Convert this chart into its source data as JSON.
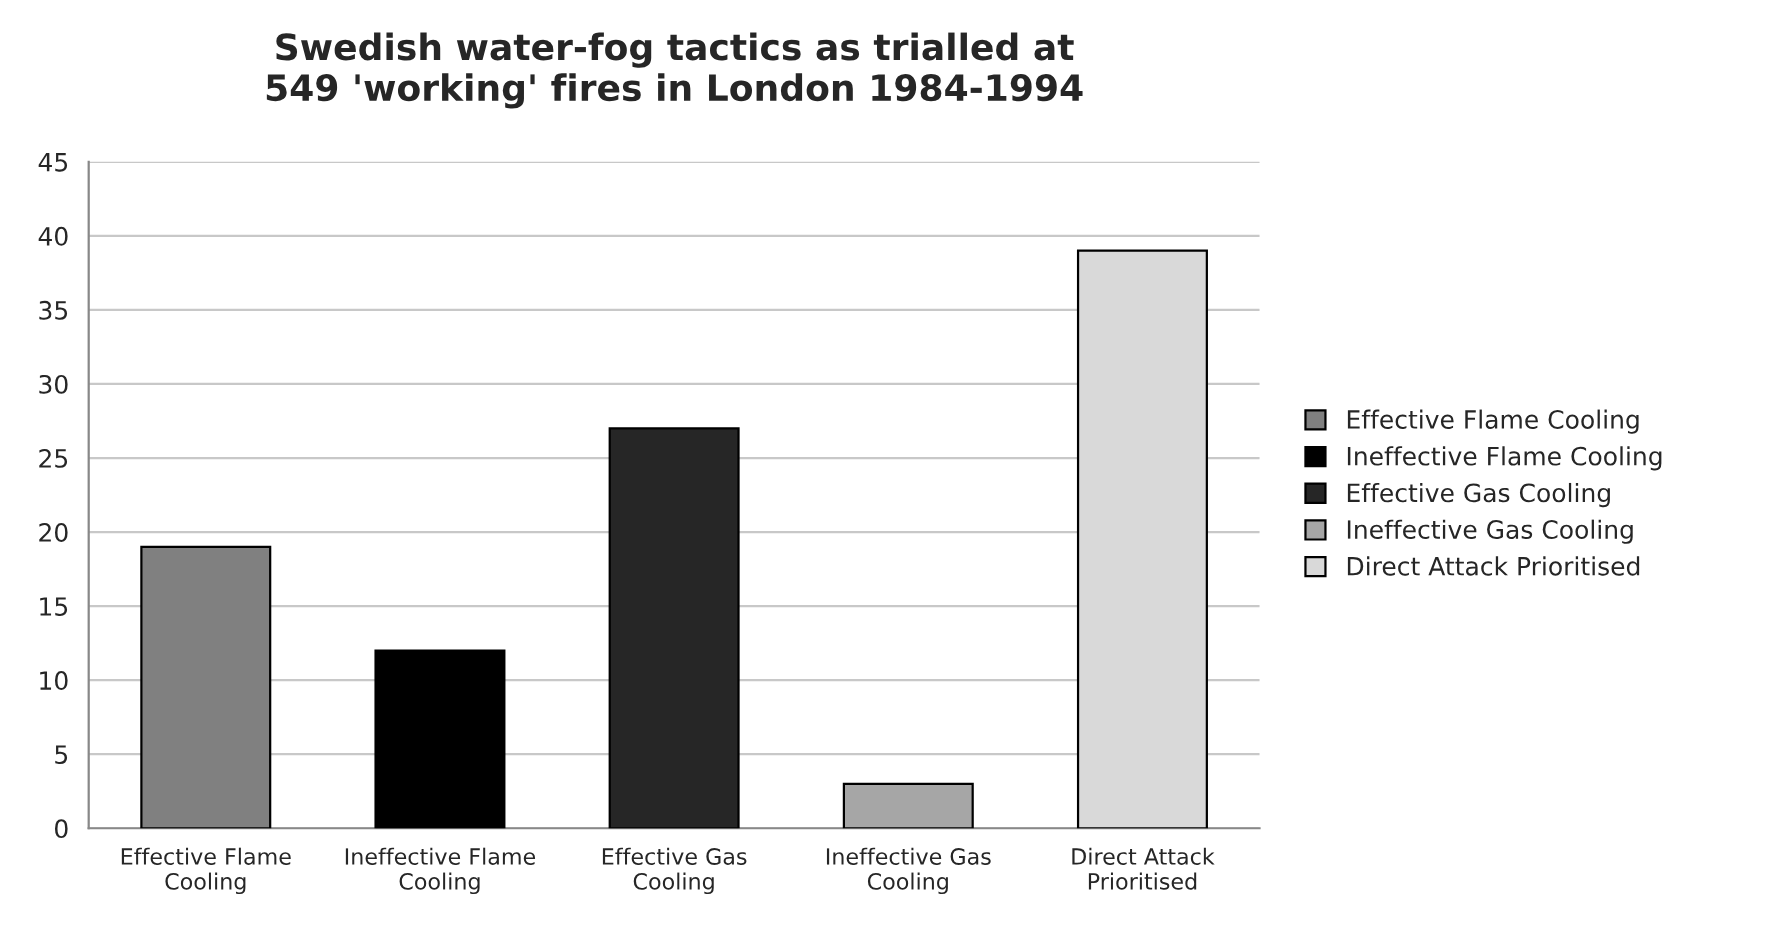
{
  "chart_data": {
    "type": "bar",
    "title": "Swedish water-fog tactics as trialled at\n549 'working' fires in London 1984-1994",
    "categories": [
      "Effective Flame Cooling",
      "Ineffective Flame Cooling",
      "Effective Gas Cooling",
      "Ineffective Gas Cooling",
      "Direct Attack Prioritised"
    ],
    "series": [
      {
        "name": "Effective Flame Cooling",
        "color": "#808080",
        "values": [
          19,
          null,
          null,
          null,
          null
        ]
      },
      {
        "name": "Ineffective Flame Cooling",
        "color": "#000000",
        "values": [
          null,
          12,
          null,
          null,
          null
        ]
      },
      {
        "name": "Effective Gas Cooling",
        "color": "#262626",
        "values": [
          null,
          null,
          27,
          null,
          null
        ]
      },
      {
        "name": "Ineffective Gas Cooling",
        "color": "#a6a6a6",
        "values": [
          null,
          null,
          null,
          3,
          null
        ]
      },
      {
        "name": "Direct Attack Prioritised",
        "color": "#d9d9d9",
        "values": [
          null,
          null,
          null,
          null,
          39
        ]
      }
    ],
    "ylim": [
      0,
      45
    ],
    "yticks": [
      0,
      5,
      10,
      15,
      20,
      25,
      30,
      35,
      40,
      45
    ],
    "grid": "y",
    "legend": "right"
  }
}
